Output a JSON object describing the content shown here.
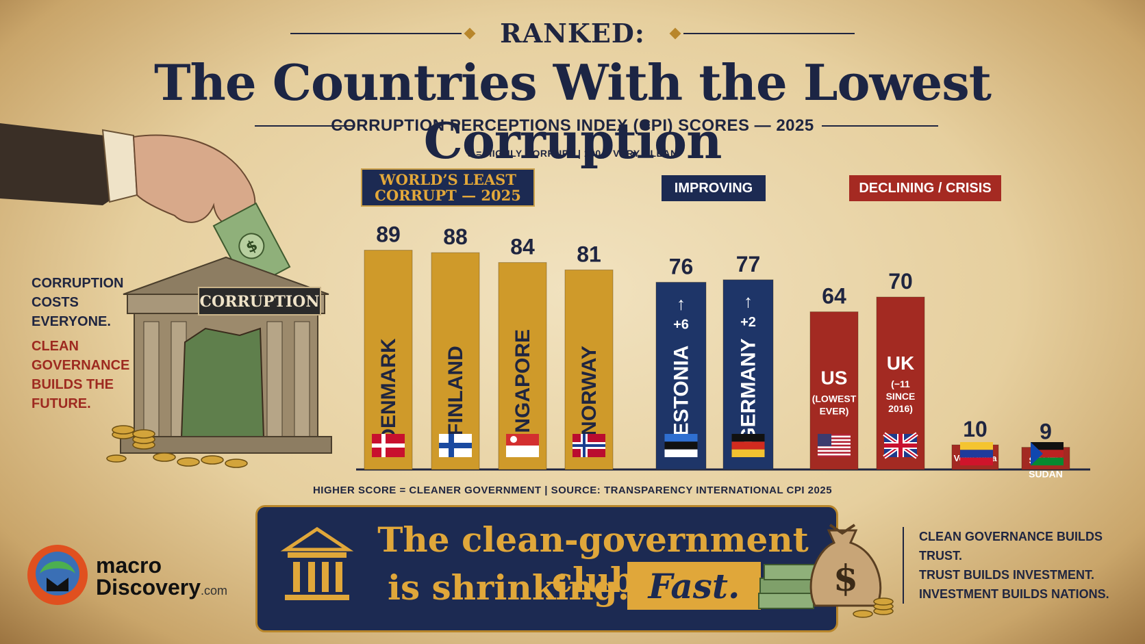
{
  "header": {
    "kicker": "RANKED:",
    "title": "The Countries With the Lowest Corruption",
    "subtitle": "CORRUPTION PERCEPTIONS INDEX (CPI) SCORES — 2025",
    "scale_note": "0 = HIGHLY CORRUPT   |   100 = VERY CLEAN"
  },
  "groups": {
    "least_corrupt_line1": "WORLD’S LEAST",
    "least_corrupt_line2": "CORRUPT — 2025",
    "improving": "IMPROVING",
    "declining": "DECLINING / CRISIS"
  },
  "chart_data": {
    "type": "bar",
    "title": "CORRUPTION PERCEPTIONS INDEX (CPI) SCORES — 2025",
    "ylim": [
      0,
      100
    ],
    "categories": [
      "DENMARK",
      "FINLAND",
      "SINGAPORE",
      "NORWAY",
      "ESTONIA",
      "GERMANY",
      "US",
      "UK",
      "VENEZUELA",
      "SOUTH SUDAN"
    ],
    "values": [
      89,
      88,
      84,
      81,
      76,
      77,
      64,
      70,
      10,
      9
    ],
    "bars": [
      {
        "name": "DENMARK",
        "value": 89,
        "group": "least",
        "flag": "denmark-flag",
        "change": "",
        "note": ""
      },
      {
        "name": "FINLAND",
        "value": 88,
        "group": "least",
        "flag": "finland-flag",
        "change": "",
        "note": ""
      },
      {
        "name": "SINGAPORE",
        "value": 84,
        "group": "least",
        "flag": "singapore-flag",
        "change": "",
        "note": ""
      },
      {
        "name": "NORWAY",
        "value": 81,
        "group": "least",
        "flag": "norway-flag",
        "change": "",
        "note": ""
      },
      {
        "name": "ESTONIA",
        "value": 76,
        "group": "improving",
        "flag": "estonia-flag",
        "change": "+6",
        "note": ""
      },
      {
        "name": "GERMANY",
        "value": 77,
        "group": "improving",
        "flag": "germany-flag",
        "change": "+2",
        "note": ""
      },
      {
        "name": "US",
        "value": 64,
        "group": "declining",
        "flag": "us-flag",
        "change": "",
        "note": "(LOWEST EVER)"
      },
      {
        "name": "UK",
        "value": 70,
        "group": "declining",
        "flag": "uk-flag",
        "change": "",
        "note": "(−11 SINCE 2016)"
      },
      {
        "name": "Venezuela",
        "value": 10,
        "group": "declining",
        "flag": "venezuela-flag",
        "change": "",
        "note": ""
      },
      {
        "name": "SOUTH SUDAN",
        "value": 9,
        "group": "declining",
        "flag": "south-sudan-flag",
        "change": "",
        "note": ""
      }
    ]
  },
  "colors": {
    "least": "#cf9a2a",
    "improving": "#1e3568",
    "declining": "#a32a22",
    "navy": "#1c2a52",
    "gold": "#e0a73a"
  },
  "bottom_note": "HIGHER SCORE = CLEANER GOVERNMENT   |   SOURCE: TRANSPARENCY INTERNATIONAL CPI 2025",
  "left_panel": {
    "building_sign": "CORRUPTION",
    "note_dark": "CORRUPTION COSTS EVERYONE.",
    "note_red": "CLEAN GOVERNANCE BUILDS THE FUTURE."
  },
  "banner": {
    "line1": "The clean-government club",
    "line2": "is shrinking.",
    "emphasis": "Fast.",
    "icon": "bank-icon"
  },
  "right_note": {
    "line1": "CLEAN GOVERNANCE BUILDS TRUST.",
    "line2": "TRUST BUILDS INVESTMENT.",
    "line3": "INVESTMENT BUILDS NATIONS."
  },
  "logo": {
    "word1": "macro",
    "word2": "Discovery",
    "suffix": ".com"
  }
}
